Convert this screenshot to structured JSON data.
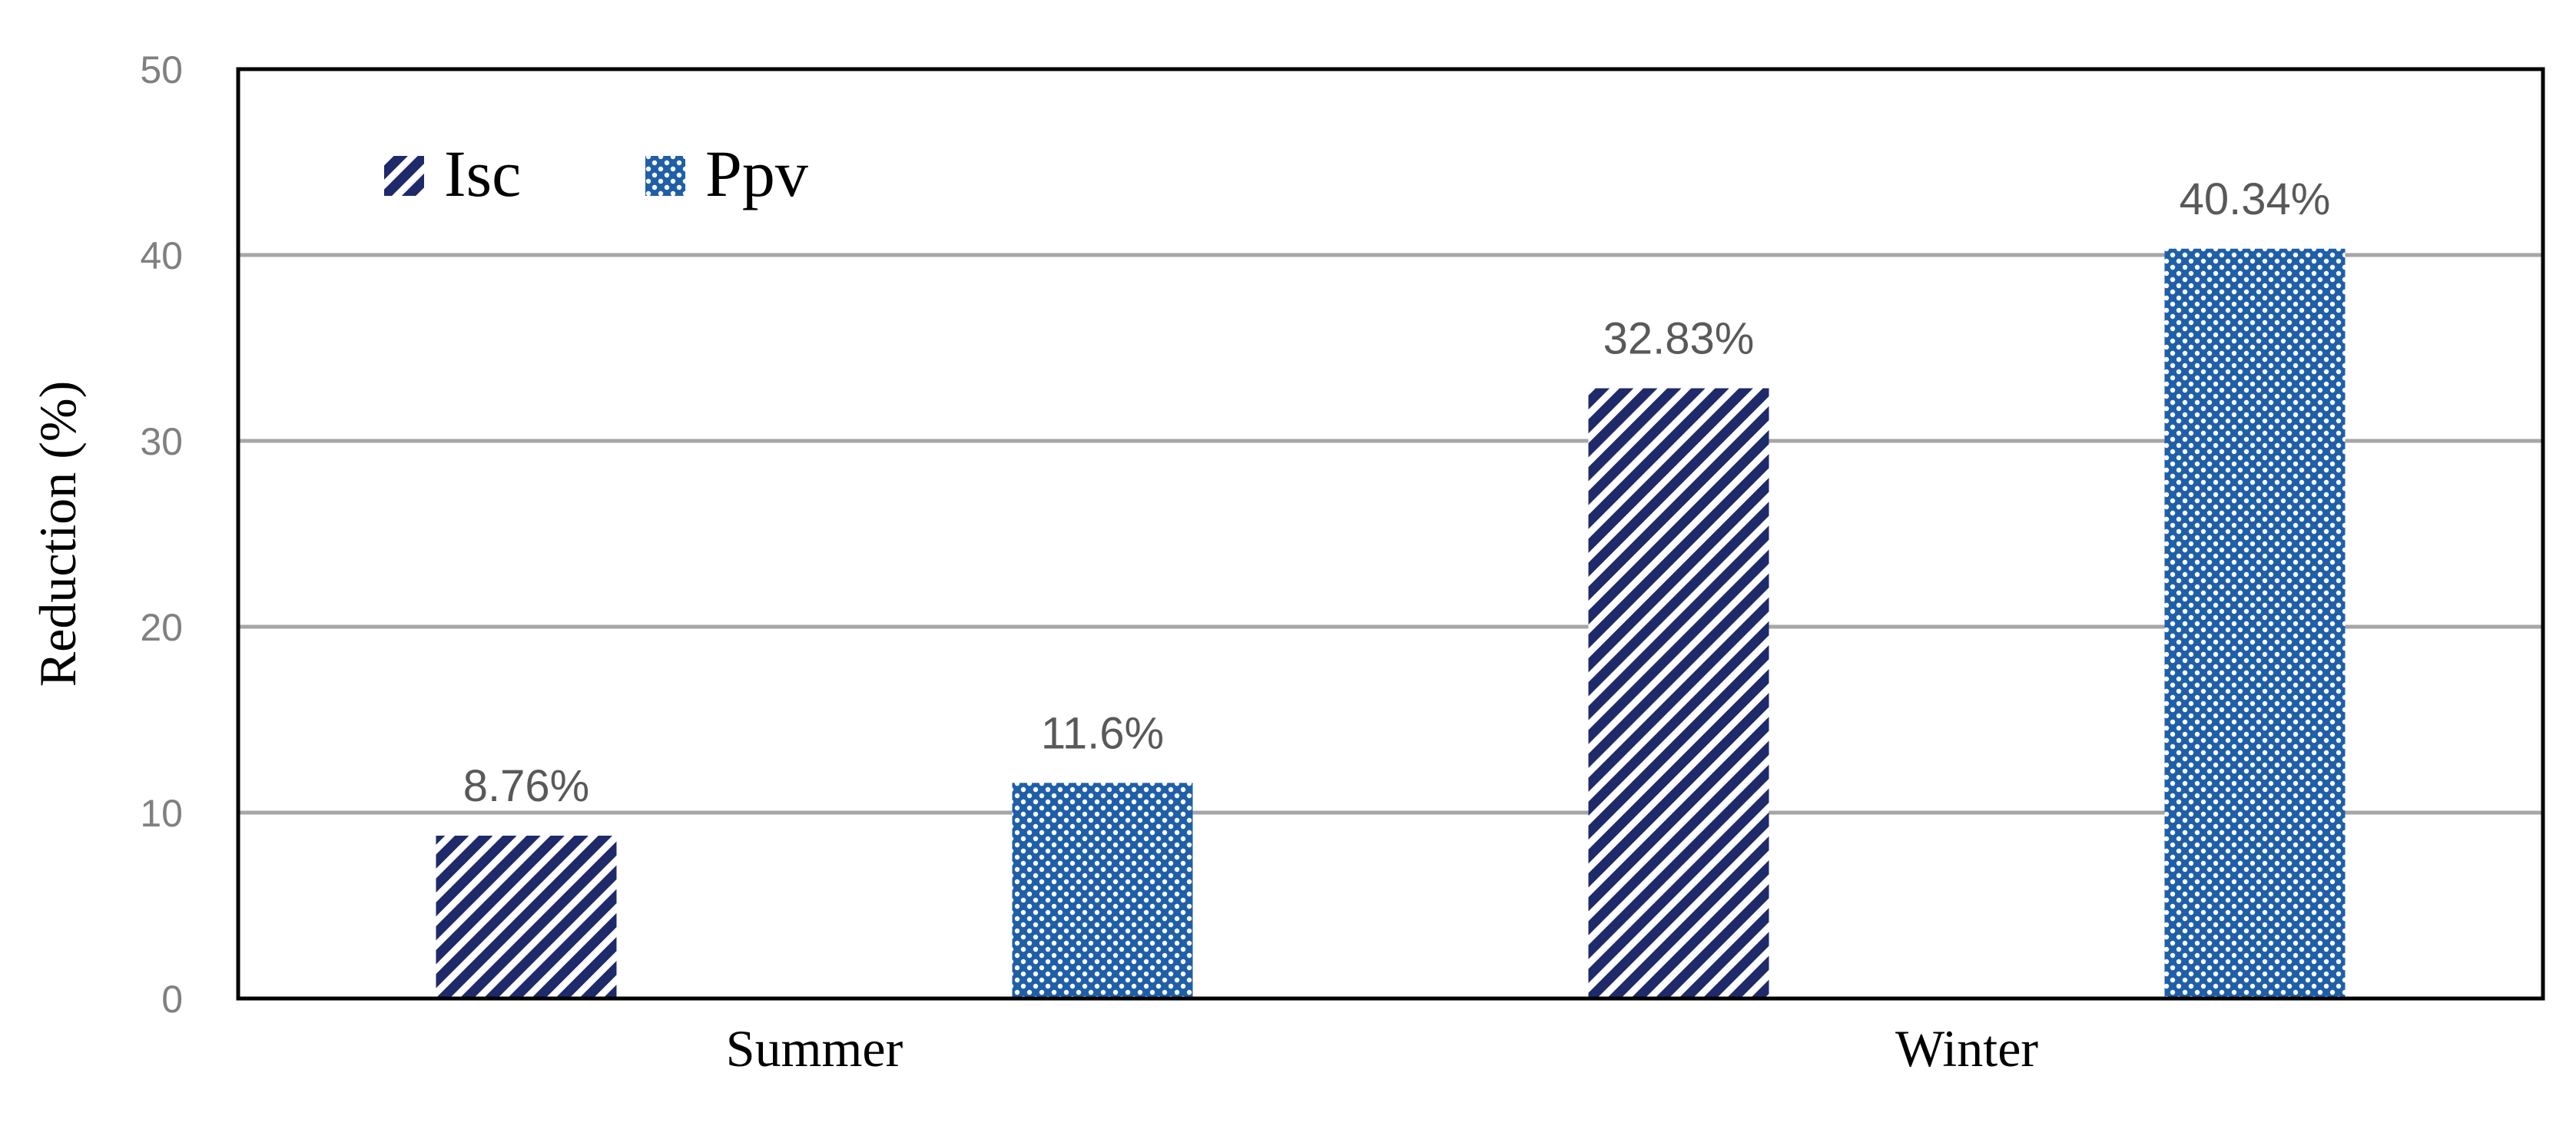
{
  "chart_data": {
    "type": "bar",
    "categories": [
      "Summer",
      "Winter"
    ],
    "series": [
      {
        "name": "Isc",
        "values": [
          8.76,
          32.83
        ],
        "labels": [
          "8.76%",
          "32.83%"
        ],
        "color": "#1f2a6b",
        "pattern": "diagonal-stripes"
      },
      {
        "name": "Ppv",
        "values": [
          11.6,
          40.34
        ],
        "labels": [
          "11.6%",
          "40.34%"
        ],
        "color": "#1f5fa8",
        "pattern": "dots"
      }
    ],
    "title": "",
    "xlabel": "",
    "ylabel": "Reduction (%)",
    "ylim": [
      0,
      50
    ],
    "yticks": [
      "0",
      "10",
      "20",
      "30",
      "40",
      "50"
    ],
    "grid": true,
    "legend_position": "top-left"
  }
}
